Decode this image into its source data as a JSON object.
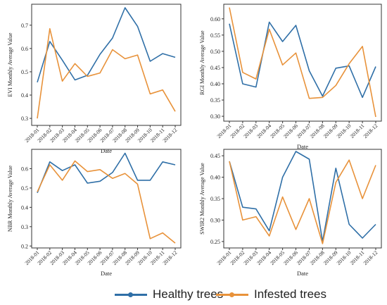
{
  "legend": {
    "healthy_label": "Healthy trees",
    "infested_label": "Infested trees"
  },
  "colors": {
    "healthy": "#2f6fa7",
    "infested": "#e8923a",
    "frame": "#333333"
  },
  "chart_data": [
    {
      "type": "line",
      "title": "",
      "xlabel": "Date",
      "ylabel": "EVI Monthly Average Value",
      "categories": [
        "2018-01",
        "2018-02",
        "2018-03",
        "2018-04",
        "2018-05",
        "2018-06",
        "2018-07",
        "2018-08",
        "2018-09",
        "2018-10",
        "2018-11",
        "2018-12"
      ],
      "yticks": [
        0.3,
        0.4,
        0.5,
        0.6,
        0.7
      ],
      "ylim": [
        0.27,
        0.79
      ],
      "series": [
        {
          "name": "Healthy trees",
          "values": [
            0.455,
            0.63,
            0.55,
            0.465,
            0.485,
            0.575,
            0.645,
            0.775,
            0.695,
            0.545,
            0.578,
            0.562
          ]
        },
        {
          "name": "Infested trees",
          "values": [
            0.3,
            0.685,
            0.46,
            0.535,
            0.48,
            0.495,
            0.595,
            0.556,
            0.572,
            0.405,
            0.422,
            0.33
          ]
        }
      ]
    },
    {
      "type": "line",
      "title": "",
      "xlabel": "Date",
      "ylabel": "RGI Monthly Average Value",
      "categories": [
        "2018-01",
        "2018-02",
        "2018-03",
        "2018-04",
        "2018-05",
        "2018-06",
        "2018-07",
        "2018-08",
        "2018-09",
        "2018-10",
        "2018-11",
        "2018-12"
      ],
      "yticks": [
        0.3,
        0.35,
        0.4,
        0.45,
        0.5,
        0.55,
        0.6
      ],
      "ylim": [
        0.285,
        0.645
      ],
      "series": [
        {
          "name": "Healthy trees",
          "values": [
            0.585,
            0.4,
            0.39,
            0.59,
            0.53,
            0.58,
            0.44,
            0.362,
            0.448,
            0.455,
            0.358,
            0.453
          ]
        },
        {
          "name": "Infested trees",
          "values": [
            0.635,
            0.435,
            0.415,
            0.568,
            0.458,
            0.495,
            0.355,
            0.358,
            0.395,
            0.462,
            0.515,
            0.298
          ]
        }
      ]
    },
    {
      "type": "line",
      "title": "",
      "xlabel": "Date",
      "ylabel": "NBR Monthly Average Value",
      "categories": [
        "2018-01",
        "2018-02",
        "2018-03",
        "2018-04",
        "2018-05",
        "2018-06",
        "2018-07",
        "2018-08",
        "2018-09",
        "2018-10",
        "2018-11",
        "2018-12"
      ],
      "yticks": [
        0.2,
        0.3,
        0.4,
        0.5,
        0.6
      ],
      "ylim": [
        0.19,
        0.7
      ],
      "series": [
        {
          "name": "Healthy trees",
          "values": [
            0.475,
            0.635,
            0.59,
            0.62,
            0.525,
            0.535,
            0.58,
            0.68,
            0.54,
            0.54,
            0.635,
            0.62
          ]
        },
        {
          "name": "Infested trees",
          "values": [
            0.48,
            0.62,
            0.54,
            0.64,
            0.585,
            0.595,
            0.55,
            0.575,
            0.52,
            0.238,
            0.268,
            0.215
          ]
        }
      ]
    },
    {
      "type": "line",
      "title": "",
      "xlabel": "Date",
      "ylabel": "SWIR2 Monthly Average Value",
      "categories": [
        "2018-01",
        "2018-02",
        "2018-03",
        "2018-04",
        "2018-05",
        "2018-06",
        "2018-07",
        "2018-08",
        "2018-09",
        "2018-10",
        "2018-11",
        "2018-12"
      ],
      "yticks": [
        0.25,
        0.3,
        0.35,
        0.4,
        0.45
      ],
      "ylim": [
        0.235,
        0.465
      ],
      "series": [
        {
          "name": "Healthy trees",
          "values": [
            0.437,
            0.33,
            0.326,
            0.275,
            0.4,
            0.46,
            0.442,
            0.25,
            0.421,
            0.29,
            0.258,
            0.29
          ]
        },
        {
          "name": "Infested trees",
          "values": [
            0.437,
            0.3,
            0.308,
            0.263,
            0.354,
            0.278,
            0.35,
            0.245,
            0.388,
            0.44,
            0.35,
            0.428
          ]
        }
      ]
    }
  ]
}
